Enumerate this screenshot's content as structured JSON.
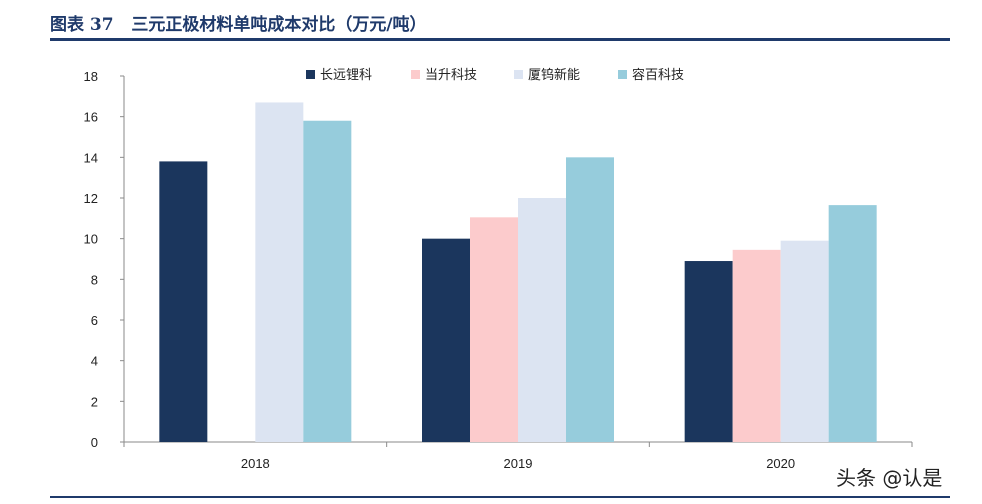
{
  "header": {
    "title": "图表 37   三元正极材料单吨成本对比（万元/吨）"
  },
  "watermark": "头条 @认是",
  "chart_data": {
    "type": "bar",
    "categories": [
      "2018",
      "2019",
      "2020"
    ],
    "series": [
      {
        "name": "长远锂科",
        "color": "#1b365d",
        "values": [
          13.8,
          10.0,
          8.9
        ]
      },
      {
        "name": "当升科技",
        "color": "#fccbcc",
        "values": [
          null,
          11.05,
          9.45
        ]
      },
      {
        "name": "厦钨新能",
        "color": "#dce4f2",
        "values": [
          16.7,
          12.0,
          9.9
        ]
      },
      {
        "name": "容百科技",
        "color": "#96ccdc",
        "values": [
          15.8,
          14.0,
          11.65
        ]
      }
    ],
    "ylim": [
      0,
      18
    ],
    "yticks": [
      0,
      2,
      4,
      6,
      8,
      10,
      12,
      14,
      16,
      18
    ],
    "legend": "top-center",
    "grid": false,
    "xlabel": "",
    "ylabel": ""
  }
}
